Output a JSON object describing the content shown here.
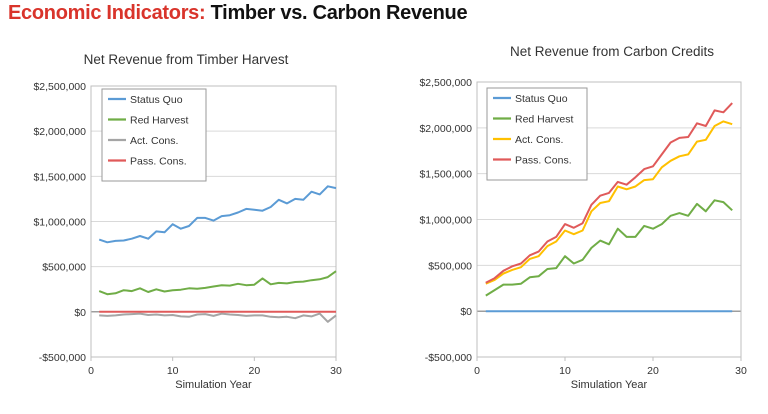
{
  "heading": {
    "accent": "Economic Indicators:",
    "rest": " Timber vs. Carbon Revenue"
  },
  "colors": {
    "heading_accent": "#d9342b",
    "status_quo": "#5b9bd5",
    "red_harvest": "#70ad47",
    "act_cons": "#a5a5a5",
    "pass_cons": "#e05a5a",
    "act_cons_right": "#ffc000"
  },
  "chart_data": [
    {
      "type": "line",
      "title": "Net Revenue from Timber Harvest",
      "xlabel": "Simulation Year",
      "ylabel": "",
      "xlim": [
        0,
        30
      ],
      "ylim": [
        -500000,
        2500000
      ],
      "xticks": [
        0,
        10,
        20,
        30
      ],
      "yticks": [
        -500000,
        0,
        500000,
        1000000,
        1500000,
        2000000,
        2500000
      ],
      "ytick_labels": [
        "-$500,000",
        "$0",
        "$500,000",
        "$1,000,000",
        "$1,500,000",
        "$2,000,000",
        "$2,500,000"
      ],
      "grid": "horizontal",
      "legend": "top-left",
      "x": [
        1,
        2,
        3,
        4,
        5,
        6,
        7,
        8,
        9,
        10,
        11,
        12,
        13,
        14,
        15,
        16,
        17,
        18,
        19,
        20,
        21,
        22,
        23,
        24,
        25,
        26,
        27,
        28,
        29,
        30
      ],
      "series": [
        {
          "name": "Status Quo",
          "color": "#5b9bd5",
          "values": [
            800000,
            770000,
            785000,
            790000,
            810000,
            840000,
            810000,
            890000,
            880000,
            970000,
            920000,
            950000,
            1040000,
            1040000,
            1010000,
            1060000,
            1070000,
            1100000,
            1140000,
            1130000,
            1120000,
            1160000,
            1240000,
            1200000,
            1250000,
            1240000,
            1330000,
            1300000,
            1390000,
            1370000
          ]
        },
        {
          "name": "Red Harvest",
          "color": "#70ad47",
          "values": [
            230000,
            195000,
            205000,
            240000,
            230000,
            260000,
            220000,
            250000,
            225000,
            240000,
            245000,
            260000,
            255000,
            265000,
            280000,
            295000,
            290000,
            310000,
            295000,
            300000,
            370000,
            305000,
            320000,
            315000,
            330000,
            335000,
            350000,
            360000,
            385000,
            450000
          ]
        },
        {
          "name": "Act. Cons.",
          "color": "#a5a5a5",
          "values": [
            -40000,
            -45000,
            -40000,
            -30000,
            -25000,
            -20000,
            -35000,
            -30000,
            -40000,
            -35000,
            -50000,
            -55000,
            -30000,
            -25000,
            -45000,
            -20000,
            -30000,
            -35000,
            -45000,
            -40000,
            -40000,
            -55000,
            -60000,
            -55000,
            -70000,
            -40000,
            -50000,
            -20000,
            -110000,
            -40000
          ]
        },
        {
          "name": "Pass. Cons.",
          "color": "#e05a5a",
          "values": [
            0,
            0,
            0,
            0,
            0,
            0,
            0,
            0,
            0,
            0,
            0,
            0,
            0,
            0,
            0,
            0,
            0,
            0,
            0,
            0,
            0,
            0,
            0,
            0,
            0,
            0,
            0,
            0,
            0,
            0
          ]
        }
      ]
    },
    {
      "type": "line",
      "title": "Net Revenue from Carbon Credits",
      "xlabel": "Simulation Year",
      "ylabel": "",
      "xlim": [
        0,
        30
      ],
      "ylim": [
        -500000,
        2500000
      ],
      "xticks": [
        0,
        10,
        20,
        30
      ],
      "yticks": [
        -500000,
        0,
        500000,
        1000000,
        1500000,
        2000000,
        2500000
      ],
      "ytick_labels": [
        "-$500,000",
        "$0",
        "$500,000",
        "$1,000,000",
        "$1,500,000",
        "$2,000,000",
        "$2,500,000"
      ],
      "grid": "horizontal",
      "legend": "top-left",
      "x": [
        1,
        2,
        3,
        4,
        5,
        6,
        7,
        8,
        9,
        10,
        11,
        12,
        13,
        14,
        15,
        16,
        17,
        18,
        19,
        20,
        21,
        22,
        23,
        24,
        25,
        26,
        27,
        28,
        29
      ],
      "series": [
        {
          "name": "Status Quo",
          "color": "#5b9bd5",
          "values": [
            0,
            0,
            0,
            0,
            0,
            0,
            0,
            0,
            0,
            0,
            0,
            0,
            0,
            0,
            0,
            0,
            0,
            0,
            0,
            0,
            0,
            0,
            0,
            0,
            0,
            0,
            0,
            0,
            0
          ]
        },
        {
          "name": "Red Harvest",
          "color": "#70ad47",
          "values": [
            170000,
            230000,
            290000,
            290000,
            300000,
            370000,
            380000,
            460000,
            470000,
            600000,
            520000,
            560000,
            690000,
            770000,
            730000,
            900000,
            810000,
            810000,
            930000,
            900000,
            950000,
            1040000,
            1070000,
            1040000,
            1170000,
            1090000,
            1210000,
            1190000,
            1100000
          ]
        },
        {
          "name": "Act. Cons.",
          "color": "#ffc000",
          "values": [
            300000,
            340000,
            410000,
            450000,
            480000,
            570000,
            600000,
            710000,
            760000,
            880000,
            840000,
            880000,
            1090000,
            1180000,
            1200000,
            1360000,
            1330000,
            1360000,
            1430000,
            1440000,
            1570000,
            1640000,
            1690000,
            1710000,
            1850000,
            1870000,
            2020000,
            2070000,
            2040000
          ]
        },
        {
          "name": "Pass. Cons.",
          "color": "#e05a5a",
          "values": [
            310000,
            360000,
            440000,
            490000,
            520000,
            610000,
            650000,
            760000,
            810000,
            950000,
            910000,
            960000,
            1160000,
            1260000,
            1290000,
            1410000,
            1380000,
            1460000,
            1550000,
            1580000,
            1710000,
            1840000,
            1890000,
            1900000,
            2050000,
            2020000,
            2190000,
            2170000,
            2270000
          ]
        }
      ]
    }
  ]
}
